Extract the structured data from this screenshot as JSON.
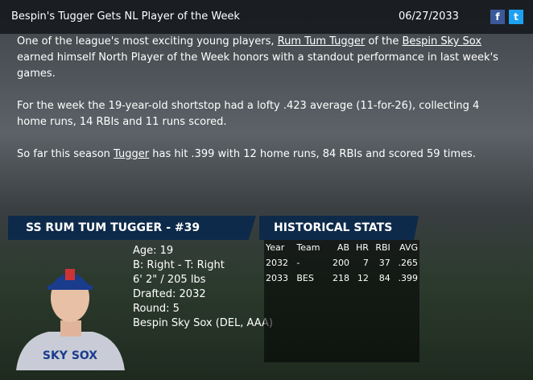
{
  "header": {
    "title": "Bespin's Tugger Gets NL Player of the Week",
    "date": "06/27/2033"
  },
  "article": {
    "paragraphs": [
      [
        "One of the league's most exciting young players, ",
        {
          "link": "Rum Tum Tugger"
        },
        " of the ",
        {
          "link": "Bespin Sky Sox"
        },
        " earned himself North Player of the Week honors with a standout performance in last week's games."
      ],
      [
        "For the week the 19-year-old shortstop had a lofty .423 average (11-for-26), collecting 4 home runs, 14 RBIs and 11 runs scored."
      ],
      [
        "So far this season ",
        {
          "link": "Tugger"
        },
        " has hit .399 with 12 home runs, 84 RBIs and scored 59 times."
      ]
    ]
  },
  "player": {
    "title": "SS RUM TUM TUGGER - #39",
    "details": [
      "Age: 19",
      "B: Right - T: Right",
      "6' 2\" / 205 lbs",
      "Drafted: 2032",
      "Round: 5",
      "Bespin Sky Sox (DEL, AAA)"
    ]
  },
  "stats": {
    "title": "HISTORICAL STATS",
    "columns": [
      "Year",
      "Team",
      "AB",
      "HR",
      "RBI",
      "AVG"
    ],
    "rows": [
      [
        "2032",
        "-",
        "200",
        "7",
        "37",
        ".265"
      ],
      [
        "2033",
        "BES",
        "218",
        "12",
        "84",
        ".399"
      ]
    ]
  }
}
